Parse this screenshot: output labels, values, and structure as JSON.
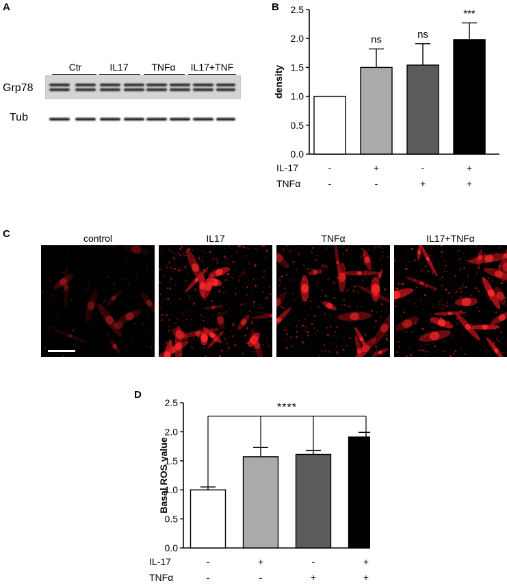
{
  "panels": {
    "a": {
      "letter": "A"
    },
    "b": {
      "letter": "B"
    },
    "c": {
      "letter": "C"
    },
    "d": {
      "letter": "D"
    }
  },
  "blot": {
    "lanes": [
      "Ctr",
      "IL17",
      "TNFα",
      "IL17+TNF"
    ],
    "rows": [
      "Grp78",
      "Tub"
    ]
  },
  "micrographs": {
    "labels": [
      "control",
      "IL17",
      "TNFα",
      "IL17+TNFα"
    ]
  },
  "chart_data": [
    {
      "type": "bar",
      "panel": "B",
      "ylabel": "density",
      "ylim": [
        0,
        2.5
      ],
      "yticks": [
        0.0,
        0.5,
        1.0,
        1.5,
        2.0,
        2.5
      ],
      "values": [
        1.0,
        1.5,
        1.54,
        1.98
      ],
      "errors": [
        0,
        0.32,
        0.37,
        0.29
      ],
      "significance": [
        "",
        "ns",
        "ns",
        "***"
      ],
      "colors": [
        "#ffffff",
        "#aaaaaa",
        "#5c5c5c",
        "#000000"
      ],
      "conditions": [
        {
          "label": "IL-17",
          "values": [
            "-",
            "+",
            "-",
            "+"
          ]
        },
        {
          "label": "TNFα",
          "values": [
            "-",
            "-",
            "+",
            "+"
          ]
        }
      ]
    },
    {
      "type": "bar",
      "panel": "D",
      "ylabel": "Basal ROS value",
      "ylim": [
        0,
        2.5
      ],
      "yticks": [
        0.0,
        0.5,
        1.0,
        1.5,
        2.0,
        2.5
      ],
      "values": [
        1.0,
        1.57,
        1.61,
        1.91
      ],
      "errors": [
        0.05,
        0.16,
        0.07,
        0.08
      ],
      "significance": "****",
      "colors": [
        "#ffffff",
        "#aaaaaa",
        "#5c5c5c",
        "#000000"
      ],
      "conditions": [
        {
          "label": "IL-17",
          "values": [
            "-",
            "+",
            "-",
            "+"
          ]
        },
        {
          "label": "TNFα",
          "values": [
            "-",
            "-",
            "+",
            "+"
          ]
        }
      ]
    }
  ]
}
